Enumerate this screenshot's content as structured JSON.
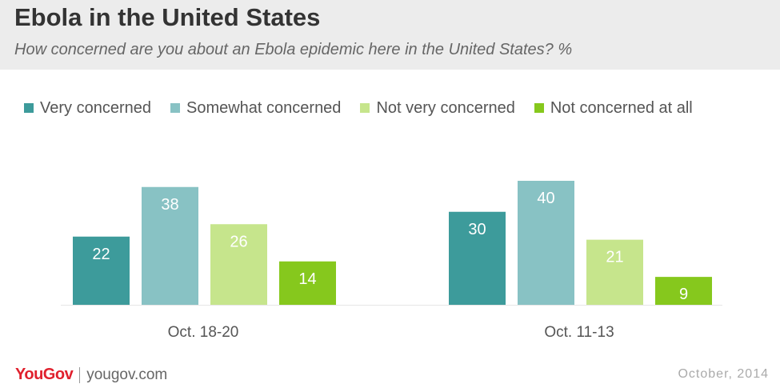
{
  "header": {
    "title": "Ebola in the United States",
    "subtitle": "How concerned are you about an Ebola epidemic here in the United States? %"
  },
  "legend": [
    {
      "label": "Very concerned",
      "color": "#3d9b9b"
    },
    {
      "label": "Somewhat concerned",
      "color": "#88c2c4"
    },
    {
      "label": "Not very concerned",
      "color": "#c6e58c"
    },
    {
      "label": "Not concerned at all",
      "color": "#86c81d"
    }
  ],
  "chart_data": {
    "type": "bar",
    "title": "Ebola in the United States",
    "subtitle": "How concerned are you about an Ebola epidemic here in the United States? %",
    "categories": [
      "Oct. 18-20",
      "Oct. 11-13"
    ],
    "series": [
      {
        "name": "Very concerned",
        "values": [
          22,
          30
        ],
        "color": "#3d9b9b"
      },
      {
        "name": "Somewhat concerned",
        "values": [
          38,
          40
        ],
        "color": "#88c2c4"
      },
      {
        "name": "Not very concerned",
        "values": [
          26,
          21
        ],
        "color": "#c6e58c"
      },
      {
        "name": "Not concerned at all",
        "values": [
          14,
          9
        ],
        "color": "#86c81d"
      }
    ],
    "ylim": [
      0,
      40
    ],
    "grid": false,
    "legend_position": "top"
  },
  "footer": {
    "brand": "YouGov",
    "url": "yougov.com",
    "date": "October, 2014"
  }
}
